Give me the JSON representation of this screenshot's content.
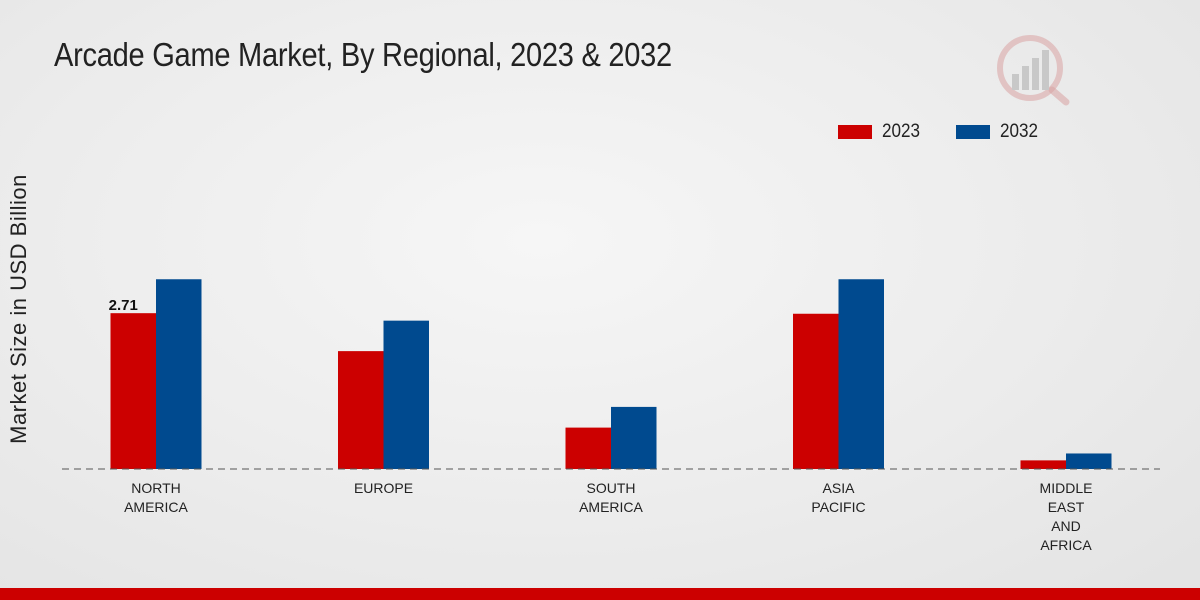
{
  "header": {
    "title": "Arcade Game Market, By Regional, 2023 & 2032"
  },
  "colors": {
    "series_2023": "#cc0000",
    "series_2032": "#004a8f",
    "accent_bar": "#cc0000"
  },
  "chart_data": {
    "type": "bar",
    "title": "Arcade Game Market, By Regional, 2023 & 2032",
    "xlabel": "",
    "ylabel": "Market Size in USD Billion",
    "categories": [
      [
        "NORTH",
        "AMERICA"
      ],
      [
        "EUROPE"
      ],
      [
        "SOUTH",
        "AMERICA"
      ],
      [
        "ASIA",
        "PACIFIC"
      ],
      [
        "MIDDLE",
        "EAST",
        "AND",
        "AFRICA"
      ]
    ],
    "series": [
      {
        "name": "2023",
        "values": [
          2.71,
          2.05,
          0.72,
          2.7,
          0.15
        ]
      },
      {
        "name": "2032",
        "values": [
          3.3,
          2.58,
          1.08,
          3.3,
          0.27
        ]
      }
    ],
    "data_labels": [
      {
        "series": "2023",
        "category_index": 0,
        "text": "2.71"
      }
    ],
    "ylim": [
      0,
      6.0
    ],
    "grid": false,
    "legend_position": "top-right"
  }
}
